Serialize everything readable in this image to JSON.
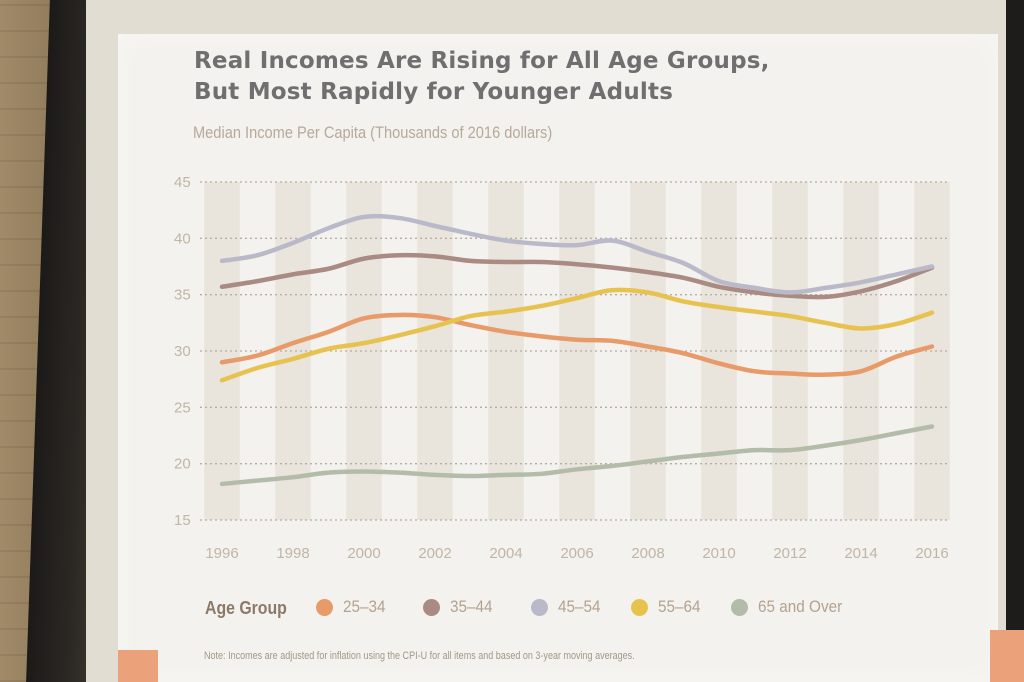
{
  "slide": {
    "title_line1": "Real Incomes Are Rising for All Age Groups,",
    "title_line2": "But Most Rapidly for Younger Adults",
    "subtitle": "Median Income Per Capita (Thousands of 2016 dollars)",
    "note": "Note: Incomes are adjusted for inflation using the CPI-U for all items and based on 3-year moving averages."
  },
  "legend": {
    "title": "Age Group",
    "items": [
      {
        "label": "25–34",
        "color": "#e89a68"
      },
      {
        "label": "35–44",
        "color": "#a98b83"
      },
      {
        "label": "45–54",
        "color": "#b9b9c9"
      },
      {
        "label": "55–64",
        "color": "#e8c24e"
      },
      {
        "label": "65 and Over",
        "color": "#b3bca8"
      }
    ]
  },
  "chart_data": {
    "type": "line",
    "title": "Real Incomes Are Rising for All Age Groups, But Most Rapidly for Younger Adults",
    "subtitle": "Median Income Per Capita (Thousands of 2016 dollars)",
    "x": [
      1996,
      1997,
      1998,
      1999,
      2000,
      2001,
      2002,
      2003,
      2004,
      2005,
      2006,
      2007,
      2008,
      2009,
      2010,
      2011,
      2012,
      2013,
      2014,
      2015,
      2016
    ],
    "x_tick_labels": [
      "1996",
      "1998",
      "2000",
      "2002",
      "2004",
      "2006",
      "2008",
      "2010",
      "2012",
      "2014",
      "2016"
    ],
    "y_ticks": [
      15,
      20,
      25,
      30,
      35,
      40,
      45
    ],
    "ylim": [
      15,
      45
    ],
    "grid": "horizontal dotted",
    "legend_position": "bottom",
    "series": [
      {
        "name": "25–34",
        "color": "#e89a68",
        "values": [
          29,
          29.6,
          30.7,
          31.7,
          32.9,
          33.2,
          33,
          32.3,
          31.7,
          31.3,
          31,
          30.9,
          30.4,
          29.8,
          28.9,
          28.2,
          28,
          27.9,
          28.2,
          29.5,
          30.4
        ]
      },
      {
        "name": "35–44",
        "color": "#a98b83",
        "values": [
          35.7,
          36.2,
          36.8,
          37.3,
          38.2,
          38.5,
          38.4,
          38,
          37.9,
          37.9,
          37.7,
          37.4,
          37,
          36.5,
          35.7,
          35.2,
          34.9,
          34.8,
          35.3,
          36.2,
          37.4
        ]
      },
      {
        "name": "45–54",
        "color": "#b9b9c9",
        "values": [
          38,
          38.5,
          39.6,
          40.9,
          41.9,
          41.8,
          41.1,
          40.4,
          39.8,
          39.5,
          39.4,
          39.8,
          38.8,
          37.8,
          36.2,
          35.6,
          35.2,
          35.6,
          36.1,
          36.8,
          37.5
        ]
      },
      {
        "name": "55–64",
        "color": "#e8c24e",
        "values": [
          27.4,
          28.5,
          29.3,
          30.2,
          30.7,
          31.4,
          32.2,
          33.1,
          33.5,
          34,
          34.7,
          35.4,
          35.2,
          34.4,
          33.9,
          33.5,
          33.1,
          32.5,
          32,
          32.4,
          33.4
        ]
      },
      {
        "name": "65 and Over",
        "color": "#b3bca8",
        "values": [
          18.2,
          18.5,
          18.8,
          19.2,
          19.3,
          19.2,
          19,
          18.9,
          19,
          19.1,
          19.5,
          19.8,
          20.2,
          20.6,
          20.9,
          21.2,
          21.2,
          21.6,
          22.1,
          22.7,
          23.3
        ]
      }
    ]
  }
}
